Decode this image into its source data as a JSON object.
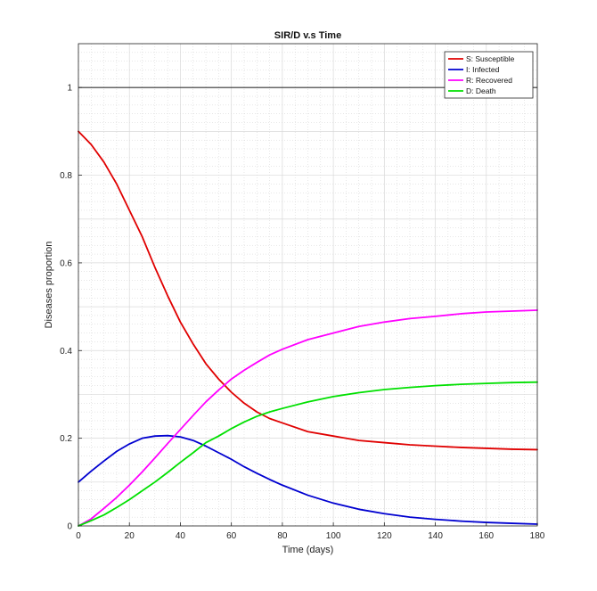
{
  "chart_data": {
    "type": "line",
    "title": "SIR/D v.s Time",
    "xlabel": "Time (days)",
    "ylabel": "Diseases proportion",
    "xlim": [
      0,
      180
    ],
    "ylim": [
      0,
      1.1
    ],
    "xticks": [
      0,
      20,
      40,
      60,
      80,
      100,
      120,
      140,
      160,
      180
    ],
    "yticks": [
      0,
      0.2,
      0.4,
      0.6,
      0.8,
      1
    ],
    "ytick_labels": [
      "0",
      "0.2",
      "0.4",
      "0.6",
      "0.8",
      "1"
    ],
    "grid": true,
    "minor_grid": true,
    "legend_position": "top-right",
    "reference_line": {
      "y": 1,
      "color": "#333333"
    },
    "series": [
      {
        "name": "S: Susceptible",
        "color": "#e00000",
        "x": [
          0,
          5,
          10,
          15,
          20,
          25,
          30,
          35,
          40,
          45,
          50,
          55,
          60,
          65,
          70,
          75,
          80,
          90,
          100,
          110,
          120,
          130,
          140,
          150,
          160,
          170,
          180
        ],
        "y": [
          0.9,
          0.87,
          0.83,
          0.78,
          0.72,
          0.66,
          0.59,
          0.525,
          0.465,
          0.415,
          0.37,
          0.335,
          0.305,
          0.28,
          0.26,
          0.245,
          0.235,
          0.215,
          0.205,
          0.195,
          0.19,
          0.185,
          0.182,
          0.179,
          0.177,
          0.175,
          0.174
        ]
      },
      {
        "name": "I: Infected",
        "color": "#0000d0",
        "x": [
          0,
          5,
          10,
          15,
          20,
          25,
          30,
          35,
          40,
          45,
          50,
          55,
          60,
          65,
          70,
          75,
          80,
          90,
          100,
          110,
          120,
          130,
          140,
          150,
          160,
          170,
          180
        ],
        "y": [
          0.1,
          0.125,
          0.148,
          0.17,
          0.187,
          0.2,
          0.205,
          0.206,
          0.203,
          0.195,
          0.182,
          0.167,
          0.152,
          0.135,
          0.12,
          0.106,
          0.093,
          0.07,
          0.052,
          0.038,
          0.028,
          0.02,
          0.015,
          0.011,
          0.008,
          0.006,
          0.004
        ]
      },
      {
        "name": "R: Recovered",
        "color": "#ff00ff",
        "x": [
          0,
          5,
          10,
          15,
          20,
          25,
          30,
          35,
          40,
          45,
          50,
          55,
          60,
          65,
          70,
          75,
          80,
          90,
          100,
          110,
          120,
          130,
          140,
          150,
          160,
          170,
          180
        ],
        "y": [
          0,
          0.016,
          0.04,
          0.065,
          0.093,
          0.123,
          0.155,
          0.188,
          0.22,
          0.252,
          0.283,
          0.31,
          0.335,
          0.355,
          0.373,
          0.39,
          0.403,
          0.425,
          0.44,
          0.455,
          0.465,
          0.473,
          0.478,
          0.484,
          0.488,
          0.49,
          0.492
        ]
      },
      {
        "name": "D: Death",
        "color": "#00e000",
        "x": [
          0,
          5,
          10,
          15,
          20,
          25,
          30,
          35,
          40,
          45,
          50,
          55,
          60,
          65,
          70,
          75,
          80,
          90,
          100,
          110,
          120,
          130,
          140,
          150,
          160,
          170,
          180
        ],
        "y": [
          0,
          0.012,
          0.025,
          0.042,
          0.06,
          0.08,
          0.1,
          0.122,
          0.145,
          0.167,
          0.19,
          0.205,
          0.222,
          0.237,
          0.25,
          0.26,
          0.268,
          0.283,
          0.295,
          0.304,
          0.311,
          0.316,
          0.32,
          0.323,
          0.325,
          0.327,
          0.328
        ]
      }
    ]
  }
}
